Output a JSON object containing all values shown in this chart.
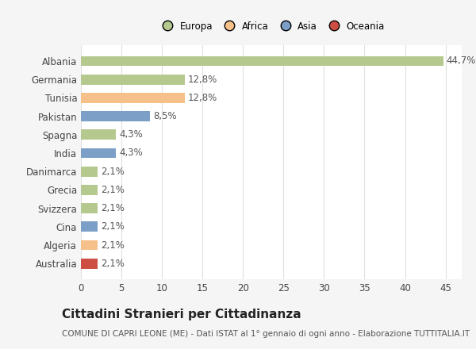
{
  "countries": [
    "Albania",
    "Germania",
    "Tunisia",
    "Pakistan",
    "Spagna",
    "India",
    "Danimarca",
    "Grecia",
    "Svizzera",
    "Cina",
    "Algeria",
    "Australia"
  ],
  "values": [
    44.7,
    12.8,
    12.8,
    8.5,
    4.3,
    4.3,
    2.1,
    2.1,
    2.1,
    2.1,
    2.1,
    2.1
  ],
  "labels": [
    "44,7%",
    "12,8%",
    "12,8%",
    "8,5%",
    "4,3%",
    "4,3%",
    "2,1%",
    "2,1%",
    "2,1%",
    "2,1%",
    "2,1%",
    "2,1%"
  ],
  "colors": [
    "#b5c98e",
    "#b5c98e",
    "#f5c08a",
    "#7b9fc7",
    "#b5c98e",
    "#7b9fc7",
    "#b5c98e",
    "#b5c98e",
    "#b5c98e",
    "#7b9fc7",
    "#f5c08a",
    "#cd4f43"
  ],
  "legend_labels": [
    "Europa",
    "Africa",
    "Asia",
    "Oceania"
  ],
  "legend_colors": [
    "#b5c98e",
    "#f5c08a",
    "#7b9fc7",
    "#cd4f43"
  ],
  "title": "Cittadini Stranieri per Cittadinanza",
  "subtitle": "COMUNE DI CAPRI LEONE (ME) - Dati ISTAT al 1° gennaio di ogni anno - Elaborazione TUTTITALIA.IT",
  "xlim": [
    0,
    47
  ],
  "xticks": [
    0,
    5,
    10,
    15,
    20,
    25,
    30,
    35,
    40,
    45
  ],
  "bg_color": "#f5f5f5",
  "plot_bg_color": "#ffffff",
  "grid_color": "#e0e0e0",
  "bar_height": 0.55,
  "label_fontsize": 8.5,
  "tick_fontsize": 8.5,
  "title_fontsize": 11,
  "subtitle_fontsize": 7.5
}
